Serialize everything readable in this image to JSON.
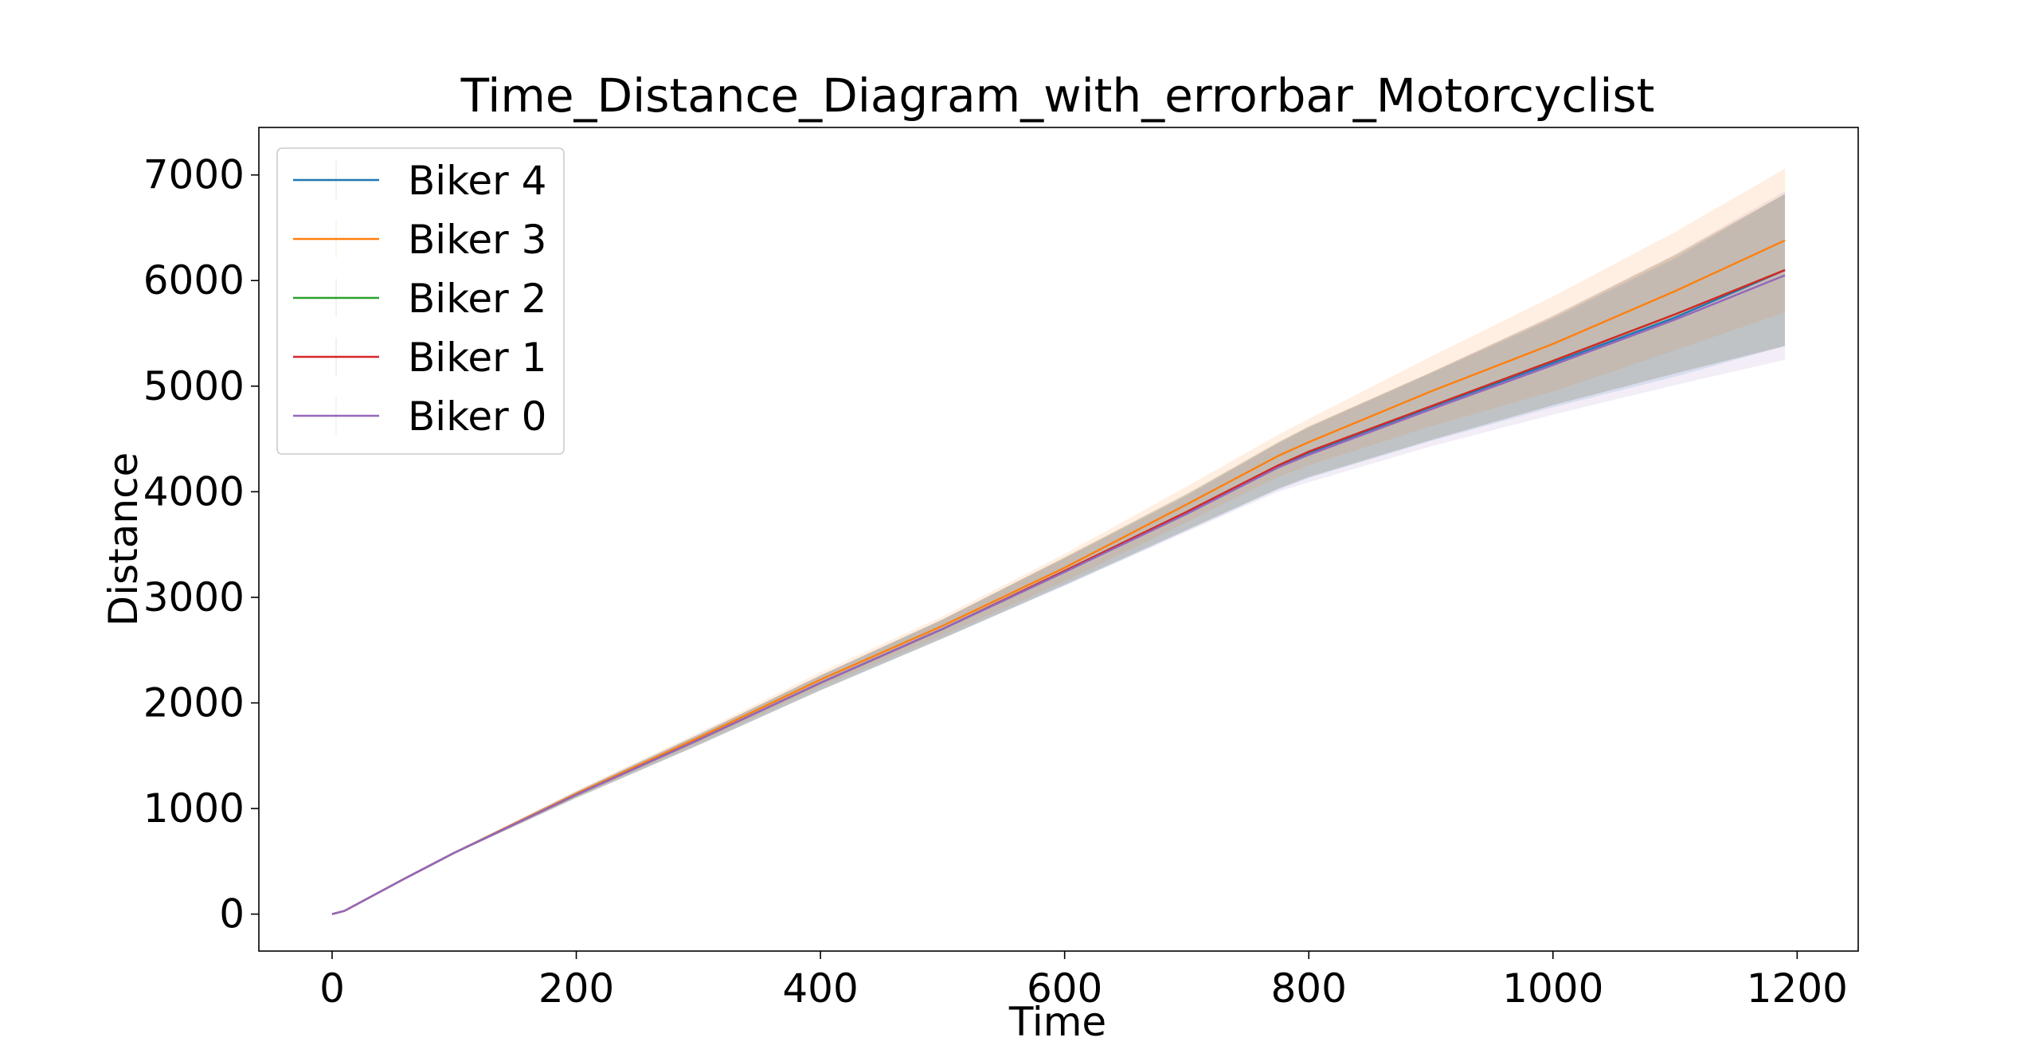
{
  "chart_data": {
    "type": "line",
    "title": "Time_Distance_Diagram_with_errorbar_Motorcyclist",
    "xlabel": "Time",
    "ylabel": "Distance",
    "xlim": [
      -60,
      1250
    ],
    "ylim": [
      -350,
      7450
    ],
    "xticks": [
      0,
      200,
      400,
      600,
      800,
      1000,
      1200
    ],
    "yticks": [
      0,
      1000,
      2000,
      3000,
      4000,
      5000,
      6000,
      7000
    ],
    "grid": false,
    "legend_position": "top-left",
    "series": [
      {
        "name": "Biker 4",
        "color": "#1f77b4",
        "x": [
          0,
          10,
          60,
          80,
          100,
          200,
          300,
          400,
          500,
          600,
          700,
          775,
          800,
          900,
          1000,
          1100,
          1190
        ],
        "y": [
          0,
          30,
          340,
          460,
          580,
          1130,
          1650,
          2190,
          2700,
          3240,
          3800,
          4240,
          4370,
          4800,
          5220,
          5650,
          6100
        ],
        "err": [
          0,
          0,
          0,
          0,
          10,
          30,
          50,
          70,
          90,
          130,
          170,
          220,
          240,
          320,
          420,
          560,
          720
        ]
      },
      {
        "name": "Biker 3",
        "color": "#ff7f0e",
        "x": [
          0,
          10,
          60,
          80,
          100,
          200,
          300,
          400,
          500,
          600,
          700,
          775,
          800,
          900,
          1000,
          1100,
          1190
        ],
        "y": [
          0,
          30,
          340,
          460,
          580,
          1140,
          1670,
          2220,
          2730,
          3280,
          3880,
          4340,
          4470,
          4950,
          5400,
          5900,
          6380
        ],
        "err": [
          0,
          0,
          0,
          0,
          10,
          30,
          50,
          70,
          90,
          130,
          170,
          200,
          220,
          330,
          450,
          560,
          680
        ]
      },
      {
        "name": "Biker 2",
        "color": "#2ca02c",
        "x": [
          0,
          10,
          60,
          80,
          100,
          200,
          300,
          400,
          500,
          600,
          700,
          775,
          800,
          900,
          1000,
          1100,
          1190
        ],
        "y": [
          0,
          30,
          340,
          460,
          580,
          1130,
          1650,
          2190,
          2700,
          3250,
          3810,
          4250,
          4380,
          4810,
          5240,
          5680,
          6100
        ],
        "err": [
          0,
          0,
          0,
          0,
          10,
          30,
          50,
          70,
          90,
          130,
          170,
          220,
          240,
          320,
          420,
          560,
          720
        ]
      },
      {
        "name": "Biker 1",
        "color": "#d62728",
        "x": [
          0,
          10,
          60,
          80,
          100,
          200,
          300,
          400,
          500,
          600,
          700,
          775,
          800,
          900,
          1000,
          1100,
          1190
        ],
        "y": [
          0,
          30,
          340,
          460,
          580,
          1130,
          1650,
          2190,
          2700,
          3250,
          3810,
          4250,
          4380,
          4810,
          5240,
          5680,
          6100
        ],
        "err": [
          0,
          0,
          0,
          0,
          10,
          30,
          50,
          70,
          90,
          130,
          170,
          220,
          240,
          320,
          420,
          560,
          720
        ]
      },
      {
        "name": "Biker 0",
        "color": "#9467bd",
        "x": [
          0,
          10,
          60,
          80,
          100,
          200,
          300,
          400,
          500,
          600,
          700,
          775,
          800,
          900,
          1000,
          1100,
          1190
        ],
        "y": [
          0,
          30,
          340,
          460,
          580,
          1130,
          1650,
          2190,
          2700,
          3240,
          3790,
          4230,
          4350,
          4780,
          5200,
          5630,
          6050
        ],
        "err": [
          0,
          0,
          0,
          0,
          10,
          30,
          50,
          70,
          90,
          130,
          170,
          230,
          260,
          350,
          470,
          620,
          800
        ]
      }
    ]
  }
}
